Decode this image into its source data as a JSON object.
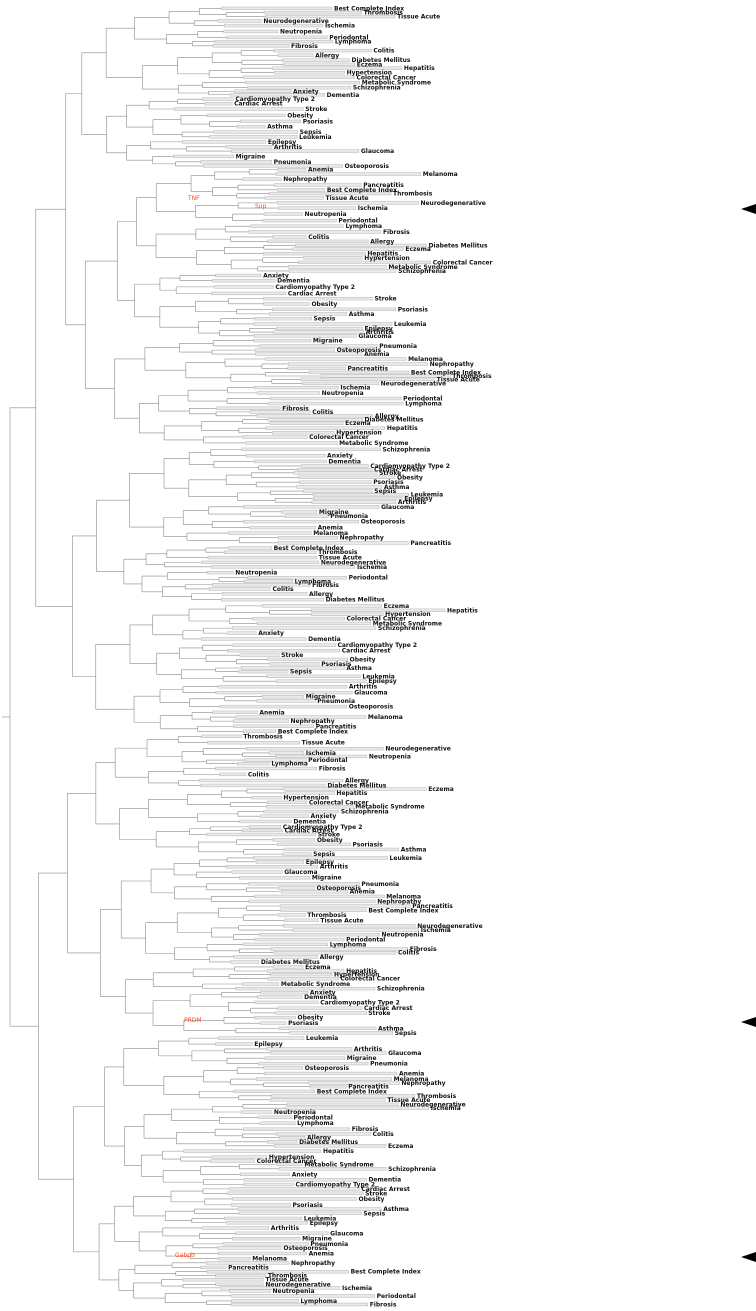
{
  "diagram": {
    "kind": "dendrogram",
    "highlight_color": "#ff4a1c",
    "line_color": "#8a8a8a",
    "bar_fill": "#e9e9e9",
    "marker_color": "#000000",
    "marker_count": 4,
    "labels": [
      "Best Complete Index",
      "Thrombosis",
      "Tissue Acute",
      "Neurodegenerative",
      "Ischemia",
      "Neutropenia",
      "Periodontal",
      "Lymphoma",
      "Fibrosis",
      "Colitis",
      "Allergy",
      "Diabetes Mellitus",
      "Eczema",
      "Hepatitis",
      "Hypertension",
      "Colorectal Cancer",
      "Metabolic Syndrome",
      "Schizophrenia",
      "Anxiety",
      "Dementia",
      "Cardiomyopathy Type 2",
      "Cardiac Arrest",
      "Stroke",
      "Obesity",
      "Psoriasis",
      "Asthma",
      "Sepsis",
      "Leukemia",
      "Epilepsy",
      "Arthritis",
      "Glaucoma",
      "Migraine",
      "Pneumonia",
      "Osteoporosis",
      "Anemia",
      "Melanoma",
      "Nephropathy",
      "Pancreatitis"
    ],
    "highlighted_labels": [
      "TNF",
      "Sup",
      "PRDM",
      "Gabpb"
    ]
  }
}
